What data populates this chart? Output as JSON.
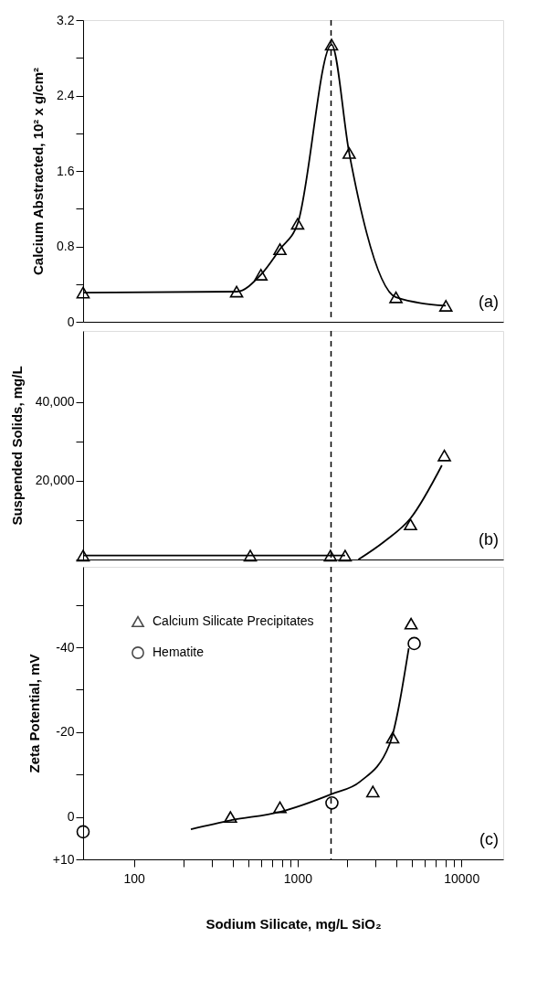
{
  "chart_data": [
    {
      "type": "line",
      "ylabel": "Calcium Abstracted, 10² x g/cm²",
      "xlim": [
        49,
        18000
      ],
      "ylim": [
        0,
        3.2
      ],
      "yticks": [
        0,
        {
          "value": 0.4,
          "label": null
        },
        0.8,
        {
          "value": 1.2,
          "label": null
        },
        1.6,
        {
          "value": 2.0,
          "label": null
        },
        2.4,
        {
          "value": 2.8,
          "label": null
        },
        3.2
      ],
      "log": "x",
      "grid": false,
      "tick_labels": "y",
      "series": [
        {
          "marker": "triangle",
          "color": "#000000",
          "x": [
            49,
            424,
            597,
            780,
            1000,
            1611,
            2065,
            3985,
            8040
          ],
          "values": [
            0.31,
            0.32,
            0.5,
            0.77,
            1.04,
            2.94,
            1.79,
            0.26,
            0.17
          ]
        }
      ],
      "ref_lines": [
        {
          "axis": "x",
          "value": 1600,
          "line_style": "dashed",
          "color": "#000000"
        }
      ],
      "annotations": [
        "(a)"
      ]
    },
    {
      "type": "line",
      "ylabel": "Suspended Solids, mg/L",
      "xlim": [
        49,
        18000
      ],
      "ylim": [
        0,
        58000
      ],
      "yticks": [
        {
          "value": 0,
          "label": null
        },
        {
          "value": 10000,
          "label": null
        },
        {
          "value": 20000,
          "label": "20,000"
        },
        {
          "value": 30000,
          "label": null
        },
        {
          "value": 40000,
          "label": "40,000"
        }
      ],
      "log": "x",
      "grid": false,
      "tick_labels": "y",
      "series": [
        {
          "type": "scatter",
          "marker": "triangle",
          "color": "#000000",
          "x": [
            49,
            514,
            1586,
            1950,
            4890,
            7870
          ],
          "values": [
            1000,
            1000,
            1000,
            1000,
            8900,
            26400
          ]
        },
        {
          "marker": "none",
          "color": "#000000",
          "x": [
            49,
            514,
            1586,
            1950
          ],
          "values": [
            1000,
            1000,
            1000,
            1000
          ]
        },
        {
          "marker": "none",
          "color": "#000000",
          "x": [
            2350,
            3390,
            4900,
            7600
          ],
          "values": [
            0,
            4600,
            10500,
            23900
          ]
        }
      ],
      "ref_lines": [
        {
          "axis": "x",
          "value": 1600,
          "line_style": "dashed",
          "color": "#000000"
        }
      ],
      "annotations": [
        "(b)"
      ]
    },
    {
      "type": "line",
      "xlabel": "Sodium Silicate, mg/L SiO₂",
      "ylabel": "Zeta Potential, mV",
      "xlim": [
        49,
        18000
      ],
      "ylim": [
        10,
        -59
      ],
      "xticks": [
        100,
        {
          "value": 200,
          "label": null
        },
        {
          "value": 300,
          "label": null
        },
        {
          "value": 400,
          "label": null
        },
        {
          "value": 500,
          "label": null
        },
        {
          "value": 600,
          "label": null
        },
        {
          "value": 700,
          "label": null
        },
        {
          "value": 800,
          "label": null
        },
        {
          "value": 900,
          "label": null
        },
        1000,
        {
          "value": 2000,
          "label": null
        },
        {
          "value": 3000,
          "label": null
        },
        {
          "value": 4000,
          "label": null
        },
        {
          "value": 5000,
          "label": null
        },
        {
          "value": 6000,
          "label": null
        },
        {
          "value": 7000,
          "label": null
        },
        {
          "value": 8000,
          "label": null
        },
        {
          "value": 9000,
          "label": null
        },
        10000
      ],
      "yticks": [
        {
          "value": -50,
          "label": null
        },
        -40,
        {
          "value": -30,
          "label": null
        },
        -20,
        {
          "value": -10,
          "label": null
        },
        0,
        {
          "value": 10,
          "label": "+10"
        }
      ],
      "log": "x",
      "grid": false,
      "legend": "top left",
      "series": [
        {
          "type": "scatter",
          "name": "Calcium Silicate Precipitates",
          "marker": "triangle",
          "color": "#000000",
          "x": [
            389,
            780,
            2880,
            3807,
            4930
          ],
          "values": [
            0,
            -2.3,
            -6,
            -18.7,
            -45.6
          ]
        },
        {
          "type": "scatter",
          "name": "Hematite",
          "marker": "circle",
          "color": "#000000",
          "x": [
            49,
            1620,
            5150
          ],
          "values": [
            3.5,
            -3.3,
            -40.9
          ]
        },
        {
          "marker": "none",
          "color": "#000000",
          "x": [
            223,
            389,
            780,
            1611,
            2400,
            3630,
            4770
          ],
          "values": [
            2.9,
            0.8,
            -1.2,
            -5.4,
            -8.3,
            -17,
            -39.8
          ]
        }
      ],
      "ref_lines": [
        {
          "axis": "x",
          "value": 1600,
          "line_style": "dashed",
          "color": "#000000"
        }
      ],
      "annotations": [
        "(c)"
      ]
    }
  ]
}
